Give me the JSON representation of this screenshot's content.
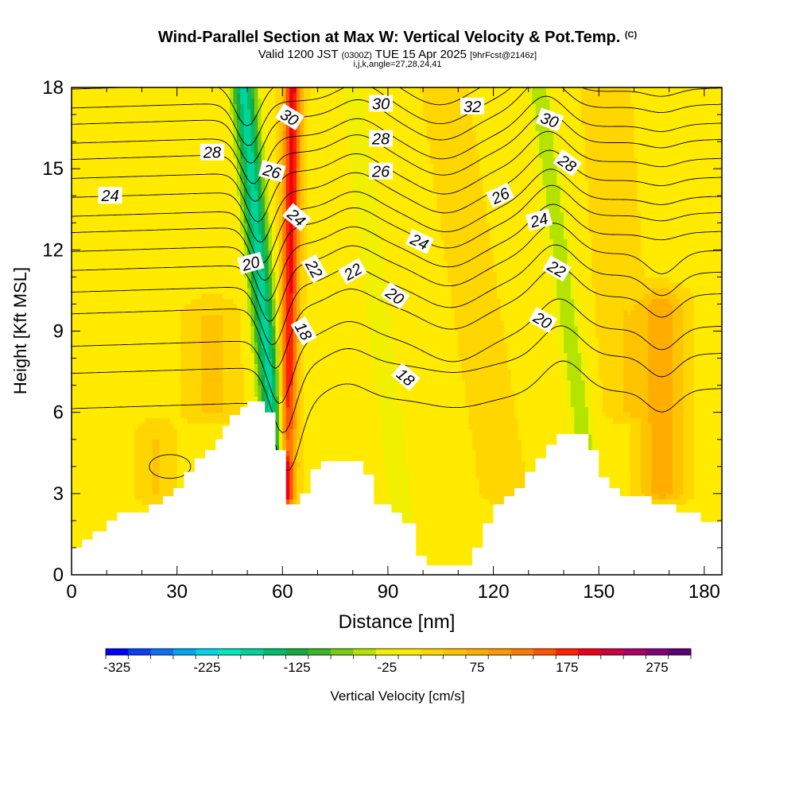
{
  "title": {
    "main": "Wind-Parallel Section at Max W: Vertical Velocity & Pot.Temp.",
    "copyright": "(C)",
    "valid_prefix": "Valid 1200 JST",
    "valid_utc": "(0300Z)",
    "valid_date": "TUE 15 Apr 2025",
    "forecast": "[9hrFcst@2146z]",
    "indices": "i,j,k,angle=27,28,24,41"
  },
  "chart_data": {
    "type": "heatmap",
    "xlabel": "Distance [nm]",
    "ylabel": "Height [Kft MSL]",
    "xlim": [
      0,
      185
    ],
    "ylim": [
      0,
      18
    ],
    "x_ticks": [
      0,
      30,
      60,
      90,
      120,
      150,
      180
    ],
    "y_ticks": [
      0,
      3,
      6,
      9,
      12,
      15,
      18
    ],
    "terrain": [
      [
        0,
        1
      ],
      [
        3,
        1
      ],
      [
        3,
        1.3
      ],
      [
        6,
        1.3
      ],
      [
        6,
        1.6
      ],
      [
        10,
        1.6
      ],
      [
        10,
        2.0
      ],
      [
        13,
        2.0
      ],
      [
        13,
        2.3
      ],
      [
        22,
        2.3
      ],
      [
        22,
        2.6
      ],
      [
        26,
        2.6
      ],
      [
        26,
        2.9
      ],
      [
        29,
        2.9
      ],
      [
        29,
        3.2
      ],
      [
        32,
        3.2
      ],
      [
        32,
        3.8
      ],
      [
        35,
        3.8
      ],
      [
        35,
        4.3
      ],
      [
        38,
        4.3
      ],
      [
        38,
        4.6
      ],
      [
        41,
        4.6
      ],
      [
        41,
        5.0
      ],
      [
        43,
        5.0
      ],
      [
        43,
        5.5
      ],
      [
        45,
        5.5
      ],
      [
        45,
        5.9
      ],
      [
        48,
        5.9
      ],
      [
        48,
        6.2
      ],
      [
        50,
        6.2
      ],
      [
        50,
        6.4
      ],
      [
        55,
        6.4
      ],
      [
        55,
        6.0
      ],
      [
        58,
        6.0
      ],
      [
        58,
        4.6
      ],
      [
        61,
        4.6
      ],
      [
        61,
        2.6
      ],
      [
        65,
        2.6
      ],
      [
        65,
        3.0
      ],
      [
        68,
        3.0
      ],
      [
        68,
        3.9
      ],
      [
        71,
        3.9
      ],
      [
        71,
        4.2
      ],
      [
        83,
        4.2
      ],
      [
        83,
        3.7
      ],
      [
        86,
        3.7
      ],
      [
        86,
        2.6
      ],
      [
        91,
        2.6
      ],
      [
        91,
        2.3
      ],
      [
        94,
        2.3
      ],
      [
        94,
        1.9
      ],
      [
        98,
        1.9
      ],
      [
        98,
        0.7
      ],
      [
        101,
        0.7
      ],
      [
        101,
        0.35
      ],
      [
        114,
        0.35
      ],
      [
        114,
        1.0
      ],
      [
        117,
        1.0
      ],
      [
        117,
        1.9
      ],
      [
        120,
        1.9
      ],
      [
        120,
        2.6
      ],
      [
        123,
        2.6
      ],
      [
        123,
        2.9
      ],
      [
        126,
        2.9
      ],
      [
        126,
        3.2
      ],
      [
        129,
        3.2
      ],
      [
        129,
        3.8
      ],
      [
        132,
        3.8
      ],
      [
        132,
        4.3
      ],
      [
        135,
        4.3
      ],
      [
        135,
        4.8
      ],
      [
        138,
        4.8
      ],
      [
        138,
        5.2
      ],
      [
        147,
        5.2
      ],
      [
        147,
        4.6
      ],
      [
        150,
        4.6
      ],
      [
        150,
        3.6
      ],
      [
        153,
        3.6
      ],
      [
        153,
        3.2
      ],
      [
        156,
        3.2
      ],
      [
        156,
        2.9
      ],
      [
        165,
        2.9
      ],
      [
        165,
        2.6
      ],
      [
        172,
        2.6
      ],
      [
        172,
        2.3
      ],
      [
        179,
        2.3
      ],
      [
        179,
        1.95
      ],
      [
        185,
        1.95
      ],
      [
        185,
        0
      ],
      [
        0,
        0
      ]
    ],
    "vertical_velocity_features": [
      {
        "x_base": 58,
        "x_top": 49,
        "y_base": 4.6,
        "y_top": 18,
        "w": -180,
        "halfwidth": 3.5
      },
      {
        "x_base": 61,
        "x_top": 63,
        "y_base": 2.8,
        "y_top": 18,
        "w": 190,
        "halfwidth": 2.5
      },
      {
        "x_base": 95,
        "x_top": 80,
        "y_base": 1.0,
        "y_top": 18,
        "w": -40,
        "halfwidth": 3.5
      },
      {
        "x_base": 146,
        "x_top": 133,
        "y_base": 4.6,
        "y_top": 18,
        "w": -60,
        "halfwidth": 3.5
      },
      {
        "x_base": 168,
        "x_top": 168,
        "y_base": 3.0,
        "y_top": 10,
        "w": 75,
        "halfwidth": 6
      },
      {
        "x_base": 40,
        "x_top": 40,
        "y_base": 6.0,
        "y_top": 9.5,
        "w": 40,
        "halfwidth": 7
      },
      {
        "x_base": 123,
        "x_top": 106,
        "y_base": 3.0,
        "y_top": 18,
        "w": 25,
        "halfwidth": 6
      },
      {
        "x_base": 158,
        "x_top": 152,
        "y_base": 6.0,
        "y_top": 18,
        "w": 30,
        "halfwidth": 6
      },
      {
        "x_base": 24,
        "x_top": 24,
        "y_base": 3.0,
        "y_top": 5.0,
        "w": 35,
        "halfwidth": 5
      }
    ],
    "theta_contours": {
      "levels": [
        17,
        18,
        19,
        20,
        21,
        22,
        23,
        24,
        25,
        26,
        27,
        28,
        29,
        30,
        31,
        32
      ],
      "baseline_ft": [
        {
          "level": 17,
          "kft": 6.5
        },
        {
          "level": 18,
          "kft": 7.8
        },
        {
          "level": 19,
          "kft": 8.8
        },
        {
          "level": 20,
          "kft": 10.0
        },
        {
          "level": 21,
          "kft": 10.8
        },
        {
          "level": 22,
          "kft": 11.6
        },
        {
          "level": 23,
          "kft": 12.3
        },
        {
          "level": 24,
          "kft": 13.0
        },
        {
          "level": 25,
          "kft": 13.6
        },
        {
          "level": 26,
          "kft": 14.3
        },
        {
          "level": 27,
          "kft": 15.0
        },
        {
          "level": 28,
          "kft": 15.7
        },
        {
          "level": 29,
          "kft": 16.3
        },
        {
          "level": 30,
          "kft": 17.0
        },
        {
          "level": 31,
          "kft": 17.6
        },
        {
          "level": 32,
          "kft": 18.3
        }
      ],
      "labels": [
        {
          "text": "30",
          "x": 62,
          "y": 16.9,
          "angle": 32
        },
        {
          "text": "28",
          "x": 40,
          "y": 15.6,
          "angle": 0
        },
        {
          "text": "26",
          "x": 57,
          "y": 14.9,
          "angle": 15
        },
        {
          "text": "24",
          "x": 11,
          "y": 14.0,
          "angle": 0
        },
        {
          "text": "24",
          "x": 64,
          "y": 13.2,
          "angle": 40
        },
        {
          "text": "20",
          "x": 51,
          "y": 11.5,
          "angle": -15
        },
        {
          "text": "22",
          "x": 69,
          "y": 11.3,
          "angle": 60
        },
        {
          "text": "18",
          "x": 66,
          "y": 9.0,
          "angle": 60
        },
        {
          "text": "30",
          "x": 88,
          "y": 17.4,
          "angle": 0
        },
        {
          "text": "28",
          "x": 88,
          "y": 16.1,
          "angle": 0
        },
        {
          "text": "26",
          "x": 88,
          "y": 14.9,
          "angle": 0
        },
        {
          "text": "22",
          "x": 80,
          "y": 11.2,
          "angle": -30
        },
        {
          "text": "24",
          "x": 99,
          "y": 12.3,
          "angle": 25
        },
        {
          "text": "20",
          "x": 92,
          "y": 10.3,
          "angle": 35
        },
        {
          "text": "18",
          "x": 95,
          "y": 7.3,
          "angle": 40
        },
        {
          "text": "32",
          "x": 114,
          "y": 17.3,
          "angle": 0
        },
        {
          "text": "30",
          "x": 136,
          "y": 16.8,
          "angle": 20
        },
        {
          "text": "28",
          "x": 141,
          "y": 15.2,
          "angle": 35
        },
        {
          "text": "26",
          "x": 122,
          "y": 14.0,
          "angle": -25
        },
        {
          "text": "24",
          "x": 133,
          "y": 13.1,
          "angle": -15
        },
        {
          "text": "22",
          "x": 138,
          "y": 11.3,
          "angle": 30
        },
        {
          "text": "20",
          "x": 134,
          "y": 9.4,
          "angle": 30
        }
      ]
    },
    "colorbar": {
      "label": "Vertical Velocity [cm/s]",
      "min": -325,
      "step": 25,
      "tick_labels": [
        "-325",
        "-225",
        "-125",
        "-25",
        "75",
        "175",
        "275"
      ],
      "colors": [
        "#0000ff",
        "#0a3ff5",
        "#0d70f2",
        "#00a5f0",
        "#00d4e6",
        "#00e8c0",
        "#00d39a",
        "#00bd6a",
        "#14aa3c",
        "#3cb52a",
        "#78cc14",
        "#b4e300",
        "#f0f000",
        "#ffea00",
        "#ffd600",
        "#ffc300",
        "#ffae00",
        "#ff9800",
        "#ff7c00",
        "#ff5500",
        "#ff2100",
        "#ee001a",
        "#cc0044",
        "#aa0066",
        "#850078",
        "#5b0078"
      ]
    }
  }
}
